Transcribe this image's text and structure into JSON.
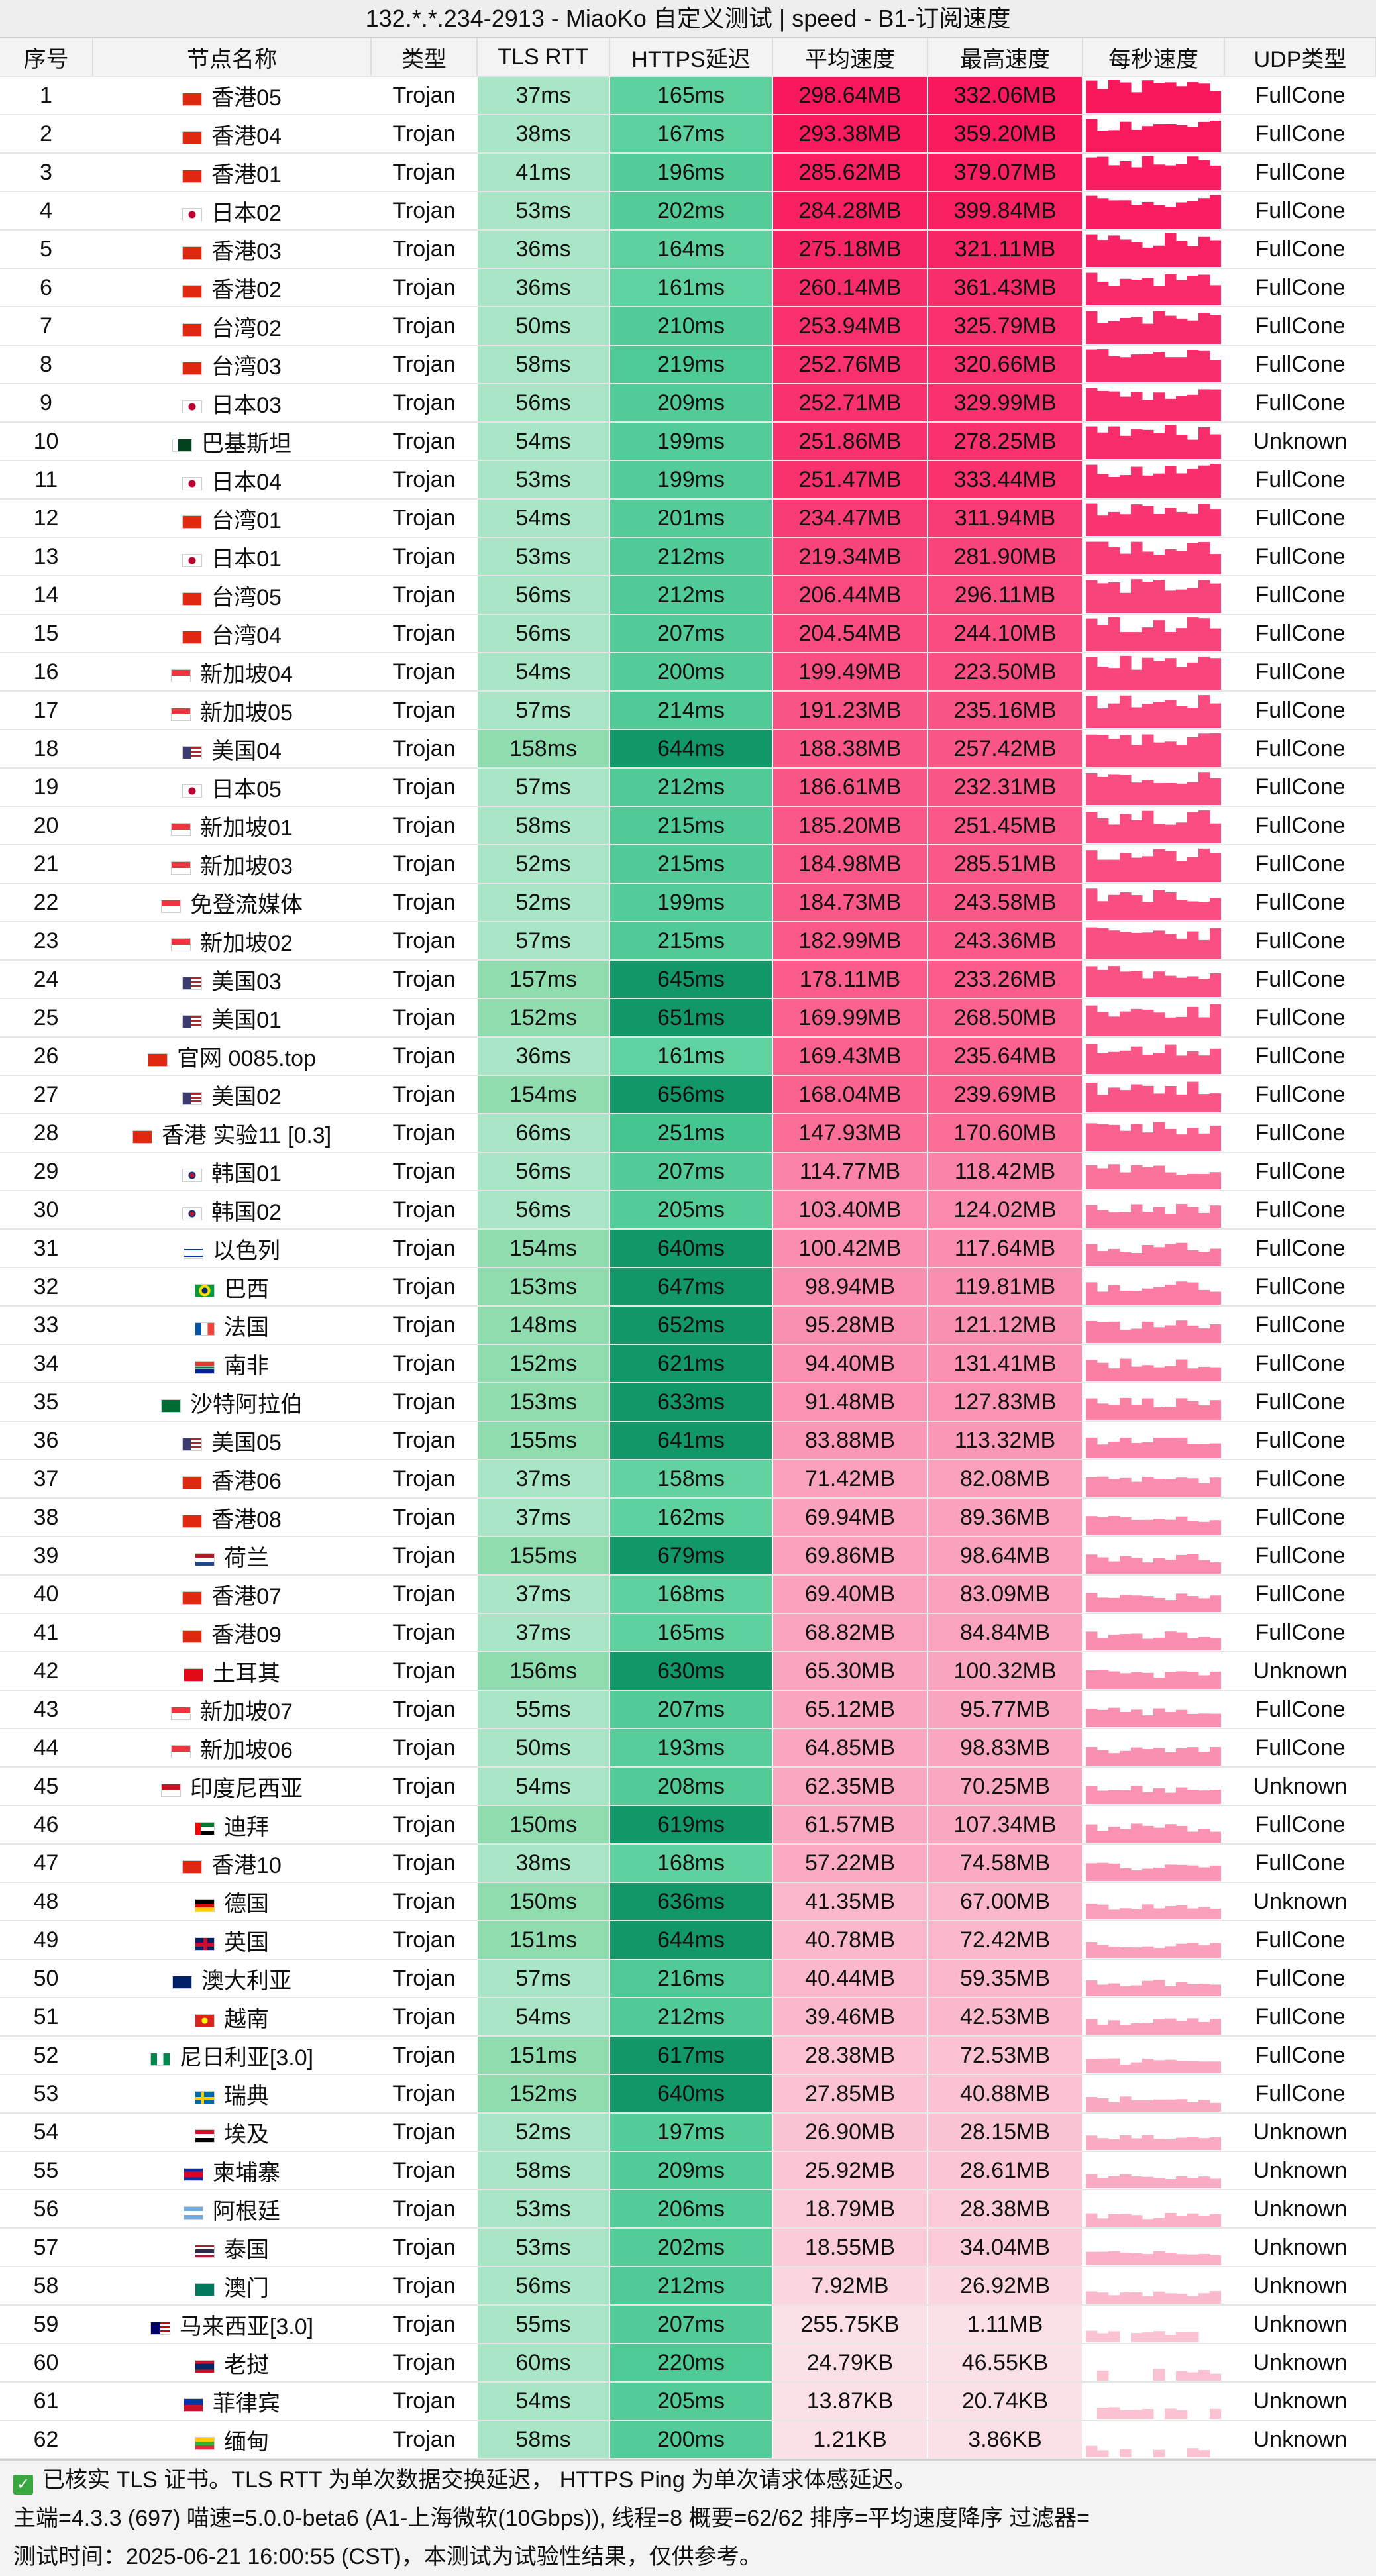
{
  "title": "132.*.*.234-2913 - MiaoKo 自定义测试 | speed - B1-订阅速度",
  "columns": {
    "idx": "序号",
    "name": "节点名称",
    "type": "类型",
    "rtt": "TLS RTT",
    "https": "HTTPS延迟",
    "avg": "平均速度",
    "max": "最高速度",
    "persec": "每秒速度",
    "udp": "UDP类型"
  },
  "colors": {
    "rtt_light": "#a9e6c6",
    "rtt_dark": "#8fdcae",
    "https_light": "#63d3a1",
    "https_dark": "#119768",
    "speed_top": "#f9175c",
    "speed_bottom": "#fbe1e7"
  },
  "rows": [
    {
      "idx": "1",
      "flag": "hk-flag-icon",
      "name": "香港05",
      "type": "Trojan",
      "rtt": "37ms",
      "https": "165ms",
      "avg": "298.64MB",
      "max": "332.06MB",
      "udp": "FullCone",
      "avg_mb": 298.64
    },
    {
      "idx": "2",
      "flag": "hk-flag-icon",
      "name": "香港04",
      "type": "Trojan",
      "rtt": "38ms",
      "https": "167ms",
      "avg": "293.38MB",
      "max": "359.20MB",
      "udp": "FullCone",
      "avg_mb": 293.38
    },
    {
      "idx": "3",
      "flag": "hk-flag-icon",
      "name": "香港01",
      "type": "Trojan",
      "rtt": "41ms",
      "https": "196ms",
      "avg": "285.62MB",
      "max": "379.07MB",
      "udp": "FullCone",
      "avg_mb": 285.62
    },
    {
      "idx": "4",
      "flag": "jp-flag-icon",
      "name": "日本02",
      "type": "Trojan",
      "rtt": "53ms",
      "https": "202ms",
      "avg": "284.28MB",
      "max": "399.84MB",
      "udp": "FullCone",
      "avg_mb": 284.28
    },
    {
      "idx": "5",
      "flag": "hk-flag-icon",
      "name": "香港03",
      "type": "Trojan",
      "rtt": "36ms",
      "https": "164ms",
      "avg": "275.18MB",
      "max": "321.11MB",
      "udp": "FullCone",
      "avg_mb": 275.18
    },
    {
      "idx": "6",
      "flag": "hk-flag-icon",
      "name": "香港02",
      "type": "Trojan",
      "rtt": "36ms",
      "https": "161ms",
      "avg": "260.14MB",
      "max": "361.43MB",
      "udp": "FullCone",
      "avg_mb": 260.14
    },
    {
      "idx": "7",
      "flag": "cn-flag-icon",
      "name": "台湾02",
      "type": "Trojan",
      "rtt": "50ms",
      "https": "210ms",
      "avg": "253.94MB",
      "max": "325.79MB",
      "udp": "FullCone",
      "avg_mb": 253.94
    },
    {
      "idx": "8",
      "flag": "cn-flag-icon",
      "name": "台湾03",
      "type": "Trojan",
      "rtt": "58ms",
      "https": "219ms",
      "avg": "252.76MB",
      "max": "320.66MB",
      "udp": "FullCone",
      "avg_mb": 252.76
    },
    {
      "idx": "9",
      "flag": "jp-flag-icon",
      "name": "日本03",
      "type": "Trojan",
      "rtt": "56ms",
      "https": "209ms",
      "avg": "252.71MB",
      "max": "329.99MB",
      "udp": "FullCone",
      "avg_mb": 252.71
    },
    {
      "idx": "10",
      "flag": "pk-flag-icon",
      "name": "巴基斯坦",
      "type": "Trojan",
      "rtt": "54ms",
      "https": "199ms",
      "avg": "251.86MB",
      "max": "278.25MB",
      "udp": "Unknown",
      "avg_mb": 251.86
    },
    {
      "idx": "11",
      "flag": "jp-flag-icon",
      "name": "日本04",
      "type": "Trojan",
      "rtt": "53ms",
      "https": "199ms",
      "avg": "251.47MB",
      "max": "333.44MB",
      "udp": "FullCone",
      "avg_mb": 251.47
    },
    {
      "idx": "12",
      "flag": "cn-flag-icon",
      "name": "台湾01",
      "type": "Trojan",
      "rtt": "54ms",
      "https": "201ms",
      "avg": "234.47MB",
      "max": "311.94MB",
      "udp": "FullCone",
      "avg_mb": 234.47
    },
    {
      "idx": "13",
      "flag": "jp-flag-icon",
      "name": "日本01",
      "type": "Trojan",
      "rtt": "53ms",
      "https": "212ms",
      "avg": "219.34MB",
      "max": "281.90MB",
      "udp": "FullCone",
      "avg_mb": 219.34
    },
    {
      "idx": "14",
      "flag": "cn-flag-icon",
      "name": "台湾05",
      "type": "Trojan",
      "rtt": "56ms",
      "https": "212ms",
      "avg": "206.44MB",
      "max": "296.11MB",
      "udp": "FullCone",
      "avg_mb": 206.44
    },
    {
      "idx": "15",
      "flag": "cn-flag-icon",
      "name": "台湾04",
      "type": "Trojan",
      "rtt": "56ms",
      "https": "207ms",
      "avg": "204.54MB",
      "max": "244.10MB",
      "udp": "FullCone",
      "avg_mb": 204.54
    },
    {
      "idx": "16",
      "flag": "sg-flag-icon",
      "name": "新加坡04",
      "type": "Trojan",
      "rtt": "54ms",
      "https": "200ms",
      "avg": "199.49MB",
      "max": "223.50MB",
      "udp": "FullCone",
      "avg_mb": 199.49
    },
    {
      "idx": "17",
      "flag": "sg-flag-icon",
      "name": "新加坡05",
      "type": "Trojan",
      "rtt": "57ms",
      "https": "214ms",
      "avg": "191.23MB",
      "max": "235.16MB",
      "udp": "FullCone",
      "avg_mb": 191.23
    },
    {
      "idx": "18",
      "flag": "us-flag-icon",
      "name": "美国04",
      "type": "Trojan",
      "rtt": "158ms",
      "https": "644ms",
      "avg": "188.38MB",
      "max": "257.42MB",
      "udp": "FullCone",
      "avg_mb": 188.38
    },
    {
      "idx": "19",
      "flag": "jp-flag-icon",
      "name": "日本05",
      "type": "Trojan",
      "rtt": "57ms",
      "https": "212ms",
      "avg": "186.61MB",
      "max": "232.31MB",
      "udp": "FullCone",
      "avg_mb": 186.61
    },
    {
      "idx": "20",
      "flag": "sg-flag-icon",
      "name": "新加坡01",
      "type": "Trojan",
      "rtt": "58ms",
      "https": "215ms",
      "avg": "185.20MB",
      "max": "251.45MB",
      "udp": "FullCone",
      "avg_mb": 185.2
    },
    {
      "idx": "21",
      "flag": "sg-flag-icon",
      "name": "新加坡03",
      "type": "Trojan",
      "rtt": "52ms",
      "https": "215ms",
      "avg": "184.98MB",
      "max": "285.51MB",
      "udp": "FullCone",
      "avg_mb": 184.98
    },
    {
      "idx": "22",
      "flag": "sg-flag-icon",
      "name": "免登流媒体",
      "type": "Trojan",
      "rtt": "52ms",
      "https": "199ms",
      "avg": "184.73MB",
      "max": "243.58MB",
      "udp": "FullCone",
      "avg_mb": 184.73
    },
    {
      "idx": "23",
      "flag": "sg-flag-icon",
      "name": "新加坡02",
      "type": "Trojan",
      "rtt": "57ms",
      "https": "215ms",
      "avg": "182.99MB",
      "max": "243.36MB",
      "udp": "FullCone",
      "avg_mb": 182.99
    },
    {
      "idx": "24",
      "flag": "us-flag-icon",
      "name": "美国03",
      "type": "Trojan",
      "rtt": "157ms",
      "https": "645ms",
      "avg": "178.11MB",
      "max": "233.26MB",
      "udp": "FullCone",
      "avg_mb": 178.11
    },
    {
      "idx": "25",
      "flag": "us-flag-icon",
      "name": "美国01",
      "type": "Trojan",
      "rtt": "152ms",
      "https": "651ms",
      "avg": "169.99MB",
      "max": "268.50MB",
      "udp": "FullCone",
      "avg_mb": 169.99
    },
    {
      "idx": "26",
      "flag": "hk-flag-icon",
      "name": "官网 0085.top",
      "type": "Trojan",
      "rtt": "36ms",
      "https": "161ms",
      "avg": "169.43MB",
      "max": "235.64MB",
      "udp": "FullCone",
      "avg_mb": 169.43
    },
    {
      "idx": "27",
      "flag": "us-flag-icon",
      "name": "美国02",
      "type": "Trojan",
      "rtt": "154ms",
      "https": "656ms",
      "avg": "168.04MB",
      "max": "239.69MB",
      "udp": "FullCone",
      "avg_mb": 168.04
    },
    {
      "idx": "28",
      "flag": "hk-flag-icon",
      "name": "香港 实验11 [0.3]",
      "type": "Trojan",
      "rtt": "66ms",
      "https": "251ms",
      "avg": "147.93MB",
      "max": "170.60MB",
      "udp": "FullCone",
      "avg_mb": 147.93
    },
    {
      "idx": "29",
      "flag": "kr-flag-icon",
      "name": "韩国01",
      "type": "Trojan",
      "rtt": "56ms",
      "https": "207ms",
      "avg": "114.77MB",
      "max": "118.42MB",
      "udp": "FullCone",
      "avg_mb": 114.77
    },
    {
      "idx": "30",
      "flag": "kr-flag-icon",
      "name": "韩国02",
      "type": "Trojan",
      "rtt": "56ms",
      "https": "205ms",
      "avg": "103.40MB",
      "max": "124.02MB",
      "udp": "FullCone",
      "avg_mb": 103.4
    },
    {
      "idx": "31",
      "flag": "il-flag-icon",
      "name": "以色列",
      "type": "Trojan",
      "rtt": "154ms",
      "https": "640ms",
      "avg": "100.42MB",
      "max": "117.64MB",
      "udp": "FullCone",
      "avg_mb": 100.42
    },
    {
      "idx": "32",
      "flag": "br-flag-icon",
      "name": "巴西",
      "type": "Trojan",
      "rtt": "153ms",
      "https": "647ms",
      "avg": "98.94MB",
      "max": "119.81MB",
      "udp": "FullCone",
      "avg_mb": 98.94
    },
    {
      "idx": "33",
      "flag": "fr-flag-icon",
      "name": "法国",
      "type": "Trojan",
      "rtt": "148ms",
      "https": "652ms",
      "avg": "95.28MB",
      "max": "121.12MB",
      "udp": "FullCone",
      "avg_mb": 95.28
    },
    {
      "idx": "34",
      "flag": "za-flag-icon",
      "name": "南非",
      "type": "Trojan",
      "rtt": "152ms",
      "https": "621ms",
      "avg": "94.40MB",
      "max": "131.41MB",
      "udp": "FullCone",
      "avg_mb": 94.4
    },
    {
      "idx": "35",
      "flag": "sa-flag-icon",
      "name": "沙特阿拉伯",
      "type": "Trojan",
      "rtt": "153ms",
      "https": "633ms",
      "avg": "91.48MB",
      "max": "127.83MB",
      "udp": "FullCone",
      "avg_mb": 91.48
    },
    {
      "idx": "36",
      "flag": "us-flag-icon",
      "name": "美国05",
      "type": "Trojan",
      "rtt": "155ms",
      "https": "641ms",
      "avg": "83.88MB",
      "max": "113.32MB",
      "udp": "FullCone",
      "avg_mb": 83.88
    },
    {
      "idx": "37",
      "flag": "hk-flag-icon",
      "name": "香港06",
      "type": "Trojan",
      "rtt": "37ms",
      "https": "158ms",
      "avg": "71.42MB",
      "max": "82.08MB",
      "udp": "FullCone",
      "avg_mb": 71.42
    },
    {
      "idx": "38",
      "flag": "hk-flag-icon",
      "name": "香港08",
      "type": "Trojan",
      "rtt": "37ms",
      "https": "162ms",
      "avg": "69.94MB",
      "max": "89.36MB",
      "udp": "FullCone",
      "avg_mb": 69.94
    },
    {
      "idx": "39",
      "flag": "nl-flag-icon",
      "name": "荷兰",
      "type": "Trojan",
      "rtt": "155ms",
      "https": "679ms",
      "avg": "69.86MB",
      "max": "98.64MB",
      "udp": "FullCone",
      "avg_mb": 69.86
    },
    {
      "idx": "40",
      "flag": "hk-flag-icon",
      "name": "香港07",
      "type": "Trojan",
      "rtt": "37ms",
      "https": "168ms",
      "avg": "69.40MB",
      "max": "83.09MB",
      "udp": "FullCone",
      "avg_mb": 69.4
    },
    {
      "idx": "41",
      "flag": "hk-flag-icon",
      "name": "香港09",
      "type": "Trojan",
      "rtt": "37ms",
      "https": "165ms",
      "avg": "68.82MB",
      "max": "84.84MB",
      "udp": "FullCone",
      "avg_mb": 68.82
    },
    {
      "idx": "42",
      "flag": "tr-flag-icon",
      "name": "土耳其",
      "type": "Trojan",
      "rtt": "156ms",
      "https": "630ms",
      "avg": "65.30MB",
      "max": "100.32MB",
      "udp": "Unknown",
      "avg_mb": 65.3
    },
    {
      "idx": "43",
      "flag": "sg-flag-icon",
      "name": "新加坡07",
      "type": "Trojan",
      "rtt": "55ms",
      "https": "207ms",
      "avg": "65.12MB",
      "max": "95.77MB",
      "udp": "FullCone",
      "avg_mb": 65.12
    },
    {
      "idx": "44",
      "flag": "sg-flag-icon",
      "name": "新加坡06",
      "type": "Trojan",
      "rtt": "50ms",
      "https": "193ms",
      "avg": "64.85MB",
      "max": "98.83MB",
      "udp": "FullCone",
      "avg_mb": 64.85
    },
    {
      "idx": "45",
      "flag": "id-flag-icon",
      "name": "印度尼西亚",
      "type": "Trojan",
      "rtt": "54ms",
      "https": "208ms",
      "avg": "62.35MB",
      "max": "70.25MB",
      "udp": "Unknown",
      "avg_mb": 62.35
    },
    {
      "idx": "46",
      "flag": "ae-flag-icon",
      "name": "迪拜",
      "type": "Trojan",
      "rtt": "150ms",
      "https": "619ms",
      "avg": "61.57MB",
      "max": "107.34MB",
      "udp": "FullCone",
      "avg_mb": 61.57
    },
    {
      "idx": "47",
      "flag": "hk-flag-icon",
      "name": "香港10",
      "type": "Trojan",
      "rtt": "38ms",
      "https": "168ms",
      "avg": "57.22MB",
      "max": "74.58MB",
      "udp": "FullCone",
      "avg_mb": 57.22
    },
    {
      "idx": "48",
      "flag": "de-flag-icon",
      "name": "德国",
      "type": "Trojan",
      "rtt": "150ms",
      "https": "636ms",
      "avg": "41.35MB",
      "max": "67.00MB",
      "udp": "Unknown",
      "avg_mb": 41.35
    },
    {
      "idx": "49",
      "flag": "gb-flag-icon",
      "name": "英国",
      "type": "Trojan",
      "rtt": "151ms",
      "https": "644ms",
      "avg": "40.78MB",
      "max": "72.42MB",
      "udp": "FullCone",
      "avg_mb": 40.78
    },
    {
      "idx": "50",
      "flag": "au-flag-icon",
      "name": "澳大利亚",
      "type": "Trojan",
      "rtt": "57ms",
      "https": "216ms",
      "avg": "40.44MB",
      "max": "59.35MB",
      "udp": "FullCone",
      "avg_mb": 40.44
    },
    {
      "idx": "51",
      "flag": "vn-flag-icon",
      "name": "越南",
      "type": "Trojan",
      "rtt": "54ms",
      "https": "212ms",
      "avg": "39.46MB",
      "max": "42.53MB",
      "udp": "FullCone",
      "avg_mb": 39.46
    },
    {
      "idx": "52",
      "flag": "ng-flag-icon",
      "name": "尼日利亚[3.0]",
      "type": "Trojan",
      "rtt": "151ms",
      "https": "617ms",
      "avg": "28.38MB",
      "max": "72.53MB",
      "udp": "FullCone",
      "avg_mb": 28.38
    },
    {
      "idx": "53",
      "flag": "se-flag-icon",
      "name": "瑞典",
      "type": "Trojan",
      "rtt": "152ms",
      "https": "640ms",
      "avg": "27.85MB",
      "max": "40.88MB",
      "udp": "FullCone",
      "avg_mb": 27.85
    },
    {
      "idx": "54",
      "flag": "eg-flag-icon",
      "name": "埃及",
      "type": "Trojan",
      "rtt": "52ms",
      "https": "197ms",
      "avg": "26.90MB",
      "max": "28.15MB",
      "udp": "Unknown",
      "avg_mb": 26.9
    },
    {
      "idx": "55",
      "flag": "kh-flag-icon",
      "name": "柬埔寨",
      "type": "Trojan",
      "rtt": "58ms",
      "https": "209ms",
      "avg": "25.92MB",
      "max": "28.61MB",
      "udp": "Unknown",
      "avg_mb": 25.92
    },
    {
      "idx": "56",
      "flag": "ar-flag-icon",
      "name": "阿根廷",
      "type": "Trojan",
      "rtt": "53ms",
      "https": "206ms",
      "avg": "18.79MB",
      "max": "28.38MB",
      "udp": "Unknown",
      "avg_mb": 18.79
    },
    {
      "idx": "57",
      "flag": "th-flag-icon",
      "name": "泰国",
      "type": "Trojan",
      "rtt": "53ms",
      "https": "202ms",
      "avg": "18.55MB",
      "max": "34.04MB",
      "udp": "Unknown",
      "avg_mb": 18.55
    },
    {
      "idx": "58",
      "flag": "mo-flag-icon",
      "name": "澳门",
      "type": "Trojan",
      "rtt": "56ms",
      "https": "212ms",
      "avg": "7.92MB",
      "max": "26.92MB",
      "udp": "Unknown",
      "avg_mb": 7.92
    },
    {
      "idx": "59",
      "flag": "my-flag-icon",
      "name": "马来西亚[3.0]",
      "type": "Trojan",
      "rtt": "55ms",
      "https": "207ms",
      "avg": "255.75KB",
      "max": "1.11MB",
      "udp": "Unknown",
      "avg_mb": 0.25
    },
    {
      "idx": "60",
      "flag": "la-flag-icon",
      "name": "老挝",
      "type": "Trojan",
      "rtt": "60ms",
      "https": "220ms",
      "avg": "24.79KB",
      "max": "46.55KB",
      "udp": "Unknown",
      "avg_mb": 0.02
    },
    {
      "idx": "61",
      "flag": "ph-flag-icon",
      "name": "菲律宾",
      "type": "Trojan",
      "rtt": "54ms",
      "https": "205ms",
      "avg": "13.87KB",
      "max": "20.74KB",
      "udp": "Unknown",
      "avg_mb": 0.01
    },
    {
      "idx": "62",
      "flag": "mm-flag-icon",
      "name": "缅甸",
      "type": "Trojan",
      "rtt": "58ms",
      "https": "200ms",
      "avg": "1.21KB",
      "max": "3.86KB",
      "udp": "Unknown",
      "avg_mb": 0.0
    }
  ],
  "footer": {
    "cert_icon": "check-icon",
    "line1": "已核实 TLS 证书。TLS RTT 为单次数据交换延迟， HTTPS Ping 为单次请求体感延迟。",
    "line2": "主端=4.3.3 (697) 喵速=5.0.0-beta6 (A1-上海微软(10Gbps)), 线程=8 概要=62/62 排序=平均速度降序 过滤器=",
    "line3": "测试时间：2025-06-21 16:00:55 (CST)，本测试为试验性结果，仅供参考。"
  }
}
